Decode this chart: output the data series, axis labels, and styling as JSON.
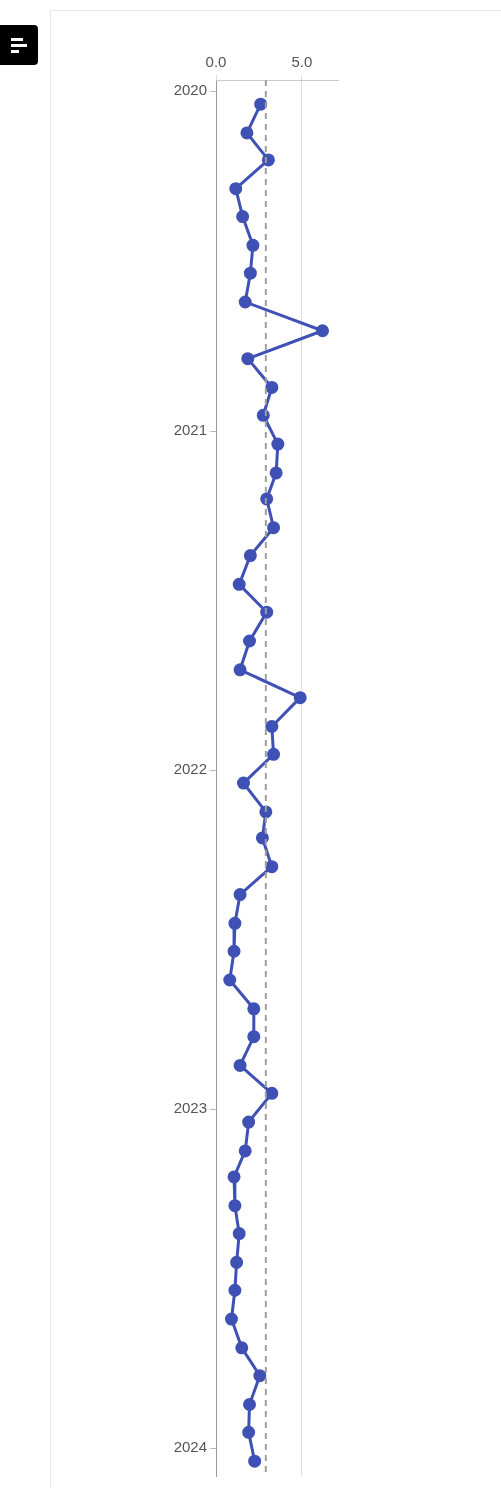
{
  "chart_data": {
    "type": "line",
    "x": [
      "2020-01-15",
      "2020-02-15",
      "2020-03-15",
      "2020-04-15",
      "2020-05-15",
      "2020-06-15",
      "2020-07-15",
      "2020-08-15",
      "2020-09-15",
      "2020-10-15",
      "2020-11-15",
      "2020-12-15",
      "2021-01-15",
      "2021-02-15",
      "2021-03-15",
      "2021-04-15",
      "2021-05-15",
      "2021-06-15",
      "2021-07-15",
      "2021-08-15",
      "2021-09-15",
      "2021-10-15",
      "2021-11-15",
      "2021-12-15",
      "2022-01-15",
      "2022-02-15",
      "2022-03-15",
      "2022-04-15",
      "2022-05-15",
      "2022-06-15",
      "2022-07-15",
      "2022-08-15",
      "2022-09-15",
      "2022-10-15",
      "2022-11-15",
      "2022-12-15",
      "2023-01-15",
      "2023-02-15",
      "2023-03-15",
      "2023-04-15",
      "2023-05-15",
      "2023-06-15",
      "2023-07-15",
      "2023-08-15",
      "2023-09-15",
      "2023-10-15",
      "2023-11-15",
      "2023-12-15",
      "2024-01-15"
    ],
    "series": [
      {
        "color": "#3f51b5",
        "values": [
          2.6,
          1.8,
          3.05,
          1.15,
          1.55,
          2.15,
          2.0,
          1.7,
          6.2,
          1.85,
          3.25,
          2.75,
          3.6,
          3.5,
          2.95,
          3.35,
          2.0,
          1.35,
          2.95,
          1.95,
          1.4,
          4.9,
          3.25,
          3.35,
          1.6,
          2.9,
          2.7,
          3.25,
          1.4,
          1.1,
          1.05,
          0.8,
          2.2,
          2.2,
          1.4,
          3.25,
          1.9,
          1.7,
          1.05,
          1.1,
          1.35,
          1.2,
          1.1,
          0.9,
          1.5,
          2.55,
          1.95,
          1.9,
          2.25
        ]
      }
    ],
    "orientation": "horizontal",
    "ylim": [
      "2024-01-31",
      "2019-12-20"
    ],
    "yticks": [
      "2020",
      "2021",
      "2022",
      "2023",
      "2024"
    ],
    "xlim": [
      0,
      7.1
    ],
    "xticks": [
      {
        "value": 0,
        "label": "0.0"
      },
      {
        "value": 5,
        "label": "5.0"
      }
    ],
    "ref_lines": [
      {
        "axis": "x",
        "value": 2.9,
        "color": "#9e9e9e",
        "line_style": "dashed"
      }
    ],
    "grid": "x",
    "marker": "circle",
    "line_style": "solid"
  }
}
